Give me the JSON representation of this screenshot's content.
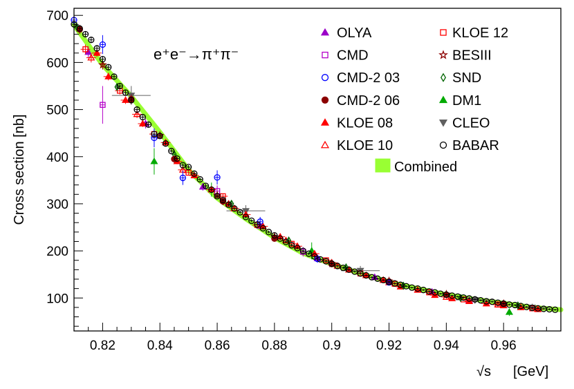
{
  "chart_data": {
    "type": "scatter",
    "xlabel_sqrt": "√s",
    "xlabel_unit": "[GeV]",
    "ylabel": "Cross section   [nb]",
    "annotation": "e⁺e⁻→π⁺π⁻",
    "xlim": [
      0.81,
      0.98
    ],
    "ylim": [
      30,
      715
    ],
    "xticks": [
      0.82,
      0.84,
      0.86,
      0.88,
      0.9,
      0.92,
      0.94,
      0.96
    ],
    "xtick_labels": [
      "0.82",
      "0.84",
      "0.86",
      "0.88",
      "0.9",
      "0.92",
      "0.94",
      "0.96"
    ],
    "yticks": [
      100,
      200,
      300,
      400,
      500,
      600,
      700
    ],
    "ytick_labels": [
      "100",
      "200",
      "300",
      "400",
      "500",
      "600",
      "700"
    ],
    "grid": false,
    "legend_position": "top-right",
    "curve": {
      "x": [
        0.81,
        0.82,
        0.83,
        0.84,
        0.85,
        0.86,
        0.87,
        0.88,
        0.89,
        0.9,
        0.91,
        0.92,
        0.93,
        0.94,
        0.95,
        0.96,
        0.97,
        0.98
      ],
      "y": [
        680,
        595,
        528,
        452,
        372,
        312,
        268,
        228,
        195,
        172,
        152,
        134,
        120,
        107,
        97,
        89,
        80,
        75
      ]
    },
    "series": [
      {
        "name": "OLYA",
        "marker": "triangle-up",
        "filled": true,
        "color": "#9b00c8",
        "points": [
          [
            0.815,
            622,
            12
          ],
          [
            0.835,
            470,
            10
          ],
          [
            0.855,
            336,
            8
          ],
          [
            0.875,
            253,
            8
          ],
          [
            0.895,
            184,
            7
          ],
          [
            0.915,
            144,
            6
          ],
          [
            0.935,
            113,
            6
          ],
          [
            0.948,
            95,
            5
          ]
        ]
      },
      {
        "name": "CMD",
        "marker": "square",
        "filled": false,
        "color": "#b400c8",
        "points": [
          [
            0.82,
            510,
            40
          ],
          [
            0.86,
            327,
            12
          ],
          [
            0.89,
            198,
            10
          ]
        ]
      },
      {
        "name": "CMD-2 03",
        "marker": "circle",
        "filled": false,
        "color": "#0000ff",
        "points": [
          [
            0.81,
            690,
            15
          ],
          [
            0.82,
            638,
            20
          ],
          [
            0.838,
            440,
            20
          ],
          [
            0.848,
            355,
            15
          ],
          [
            0.86,
            356,
            15
          ],
          [
            0.875,
            262,
            10
          ],
          [
            0.895,
            183,
            8
          ],
          [
            0.92,
            133,
            6
          ]
        ]
      },
      {
        "name": "CMD-2 06",
        "marker": "circle",
        "filled": true,
        "color": "#8b0000",
        "points": [
          [
            0.812,
            670,
            10
          ],
          [
            0.83,
            522,
            10
          ],
          [
            0.845,
            395,
            8
          ],
          [
            0.862,
            305,
            8
          ],
          [
            0.88,
            226,
            6
          ],
          [
            0.9,
            172,
            5
          ],
          [
            0.92,
            135,
            5
          ],
          [
            0.94,
            107,
            4
          ],
          [
            0.96,
            88,
            4
          ]
        ]
      },
      {
        "name": "KLOE 08",
        "marker": "triangle-up",
        "filled": true,
        "color": "#ff0000",
        "points": [
          [
            0.818,
            620,
            8
          ],
          [
            0.822,
            570,
            8
          ],
          [
            0.828,
            520,
            8
          ],
          [
            0.834,
            470,
            7
          ],
          [
            0.842,
            430,
            7
          ],
          [
            0.846,
            390,
            6
          ],
          [
            0.852,
            360,
            6
          ],
          [
            0.858,
            330,
            6
          ],
          [
            0.864,
            300,
            5
          ],
          [
            0.87,
            277,
            5
          ],
          [
            0.876,
            252,
            5
          ],
          [
            0.882,
            230,
            5
          ],
          [
            0.888,
            210,
            4
          ],
          [
            0.894,
            194,
            4
          ],
          [
            0.9,
            175,
            4
          ],
          [
            0.906,
            160,
            4
          ],
          [
            0.912,
            148,
            3
          ],
          [
            0.918,
            138,
            3
          ],
          [
            0.924,
            124,
            3
          ],
          [
            0.93,
            117,
            3
          ],
          [
            0.936,
            106,
            3
          ],
          [
            0.942,
            99,
            3
          ],
          [
            0.948,
            93,
            3
          ],
          [
            0.954,
            88,
            3
          ],
          [
            0.96,
            84,
            3
          ],
          [
            0.966,
            80,
            3
          ],
          [
            0.972,
            76,
            3
          ]
        ]
      },
      {
        "name": "KLOE 10",
        "marker": "triangle-up",
        "filled": false,
        "color": "#ff0000",
        "points": [
          [
            0.816,
            610,
            10
          ],
          [
            0.832,
            490,
            8
          ],
          [
            0.848,
            372,
            7
          ],
          [
            0.866,
            290,
            6
          ],
          [
            0.884,
            222,
            5
          ],
          [
            0.902,
            168,
            5
          ],
          [
            0.92,
            133,
            4
          ],
          [
            0.94,
            102,
            4
          ],
          [
            0.958,
            86,
            4
          ]
        ]
      },
      {
        "name": "KLOE 12",
        "marker": "square",
        "filled": false,
        "color": "#ff0000",
        "points": [
          [
            0.814,
            628,
            10
          ],
          [
            0.826,
            540,
            8
          ],
          [
            0.838,
            448,
            7
          ],
          [
            0.85,
            366,
            6
          ],
          [
            0.862,
            316,
            6
          ],
          [
            0.874,
            255,
            5
          ],
          [
            0.886,
            215,
            5
          ],
          [
            0.898,
            180,
            4
          ],
          [
            0.91,
            152,
            4
          ],
          [
            0.922,
            130,
            4
          ],
          [
            0.934,
            112,
            3
          ],
          [
            0.946,
            97,
            3
          ],
          [
            0.958,
            86,
            3
          ],
          [
            0.97,
            78,
            3
          ]
        ]
      },
      {
        "name": "BESIII",
        "marker": "star",
        "filled": false,
        "color": "#8b0000",
        "points": [
          [
            0.82,
            595,
            10
          ],
          [
            0.84,
            445,
            8
          ],
          [
            0.86,
            318,
            6
          ],
          [
            0.88,
            230,
            5
          ],
          [
            0.9,
            173,
            5
          ],
          [
            0.92,
            136,
            4
          ],
          [
            0.94,
            108,
            4
          ],
          [
            0.96,
            88,
            3
          ]
        ]
      },
      {
        "name": "SND",
        "marker": "diamond",
        "filled": false,
        "color": "#006400",
        "points": [
          [
            0.811,
            675,
            10
          ],
          [
            0.825,
            548,
            8
          ],
          [
            0.845,
            405,
            8
          ],
          [
            0.865,
            300,
            6
          ],
          [
            0.885,
            222,
            5
          ],
          [
            0.905,
            165,
            5
          ],
          [
            0.925,
            126,
            4
          ],
          [
            0.945,
            100,
            4
          ],
          [
            0.965,
            84,
            3
          ]
        ]
      },
      {
        "name": "DM1",
        "marker": "triangle-up",
        "filled": true,
        "color": "#00aa00",
        "points": [
          [
            0.838,
            390,
            28
          ],
          [
            0.858,
            330,
            15
          ],
          [
            0.893,
            200,
            18
          ],
          [
            0.962,
            70,
            8
          ]
        ]
      },
      {
        "name": "CLEO",
        "marker": "triangle-down",
        "filled": true,
        "color": "#606060",
        "points": [
          [
            0.83,
            530,
            20
          ],
          [
            0.87,
            285,
            12
          ],
          [
            0.91,
            158,
            10
          ],
          [
            0.95,
            96,
            8
          ],
          [
            0.97,
            80,
            8
          ]
        ]
      },
      {
        "name": "BABAR",
        "marker": "circle",
        "filled": false,
        "color": "#000000",
        "points": [
          [
            0.81,
            681,
            6
          ],
          [
            0.812,
            672,
            6
          ],
          [
            0.814,
            660,
            6
          ],
          [
            0.816,
            648,
            6
          ],
          [
            0.818,
            630,
            6
          ],
          [
            0.82,
            607,
            6
          ],
          [
            0.822,
            590,
            6
          ],
          [
            0.824,
            570,
            6
          ],
          [
            0.826,
            550,
            5
          ],
          [
            0.828,
            536,
            5
          ],
          [
            0.83,
            520,
            5
          ],
          [
            0.832,
            500,
            5
          ],
          [
            0.834,
            484,
            5
          ],
          [
            0.836,
            468,
            5
          ],
          [
            0.838,
            448,
            5
          ],
          [
            0.84,
            444,
            5
          ],
          [
            0.842,
            428,
            4
          ],
          [
            0.844,
            412,
            4
          ],
          [
            0.846,
            396,
            4
          ],
          [
            0.848,
            382,
            4
          ],
          [
            0.85,
            378,
            4
          ],
          [
            0.852,
            364,
            4
          ],
          [
            0.854,
            352,
            4
          ],
          [
            0.856,
            338,
            4
          ],
          [
            0.858,
            330,
            4
          ],
          [
            0.86,
            316,
            4
          ],
          [
            0.862,
            308,
            4
          ],
          [
            0.864,
            298,
            4
          ],
          [
            0.866,
            290,
            3
          ],
          [
            0.868,
            282,
            3
          ],
          [
            0.87,
            272,
            3
          ],
          [
            0.872,
            264,
            3
          ],
          [
            0.874,
            256,
            3
          ],
          [
            0.876,
            248,
            3
          ],
          [
            0.878,
            240,
            3
          ],
          [
            0.88,
            233,
            3
          ],
          [
            0.882,
            226,
            3
          ],
          [
            0.884,
            219,
            3
          ],
          [
            0.886,
            212,
            3
          ],
          [
            0.888,
            206,
            3
          ],
          [
            0.89,
            200,
            3
          ],
          [
            0.892,
            194,
            3
          ],
          [
            0.894,
            188,
            3
          ],
          [
            0.896,
            182,
            3
          ],
          [
            0.898,
            178,
            3
          ],
          [
            0.9,
            173,
            3
          ],
          [
            0.902,
            168,
            3
          ],
          [
            0.904,
            164,
            3
          ],
          [
            0.906,
            160,
            3
          ],
          [
            0.908,
            156,
            2
          ],
          [
            0.91,
            152,
            2
          ],
          [
            0.912,
            148,
            2
          ],
          [
            0.914,
            144,
            2
          ],
          [
            0.916,
            141,
            2
          ],
          [
            0.918,
            138,
            2
          ],
          [
            0.92,
            134,
            2
          ],
          [
            0.922,
            131,
            2
          ],
          [
            0.924,
            128,
            2
          ],
          [
            0.926,
            125,
            2
          ],
          [
            0.928,
            122,
            2
          ],
          [
            0.93,
            120,
            2
          ],
          [
            0.932,
            117,
            2
          ],
          [
            0.934,
            114,
            2
          ],
          [
            0.936,
            112,
            2
          ],
          [
            0.938,
            109,
            2
          ],
          [
            0.94,
            107,
            2
          ],
          [
            0.942,
            105,
            2
          ],
          [
            0.944,
            103,
            2
          ],
          [
            0.946,
            101,
            2
          ],
          [
            0.948,
            99,
            2
          ],
          [
            0.95,
            97,
            2
          ],
          [
            0.952,
            95,
            2
          ],
          [
            0.954,
            93,
            2
          ],
          [
            0.956,
            92,
            2
          ],
          [
            0.958,
            90,
            2
          ],
          [
            0.96,
            88,
            2
          ],
          [
            0.962,
            86,
            2
          ],
          [
            0.964,
            85,
            2
          ],
          [
            0.966,
            83,
            2
          ],
          [
            0.968,
            81,
            2
          ],
          [
            0.97,
            79,
            2
          ],
          [
            0.972,
            78,
            2
          ],
          [
            0.974,
            77,
            2
          ],
          [
            0.976,
            76,
            2
          ],
          [
            0.978,
            75,
            2
          ]
        ]
      }
    ],
    "combined_label": "Combined",
    "combined_color": "#99ff33"
  }
}
